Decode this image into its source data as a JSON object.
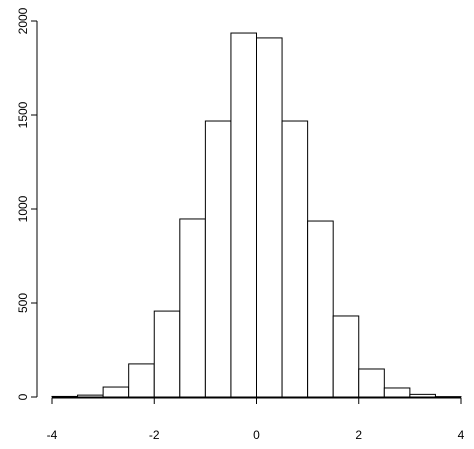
{
  "chart_data": {
    "type": "histogram",
    "bins": [
      -4,
      -3.5,
      -3,
      -2.5,
      -2,
      -1.5,
      -1,
      -0.5,
      0,
      0.5,
      1,
      1.5,
      2,
      2.5,
      3,
      3.5,
      4
    ],
    "counts": [
      3,
      10,
      53,
      176,
      457,
      947,
      1468,
      1936,
      1910,
      1468,
      936,
      431,
      149,
      48,
      14,
      2
    ],
    "color": "#ffffff",
    "xlim": [
      -4,
      4
    ],
    "xticks": [
      -4,
      -2,
      0,
      2,
      4
    ],
    "ylim": [
      0,
      2000
    ],
    "yticks": [
      0,
      500,
      1000,
      1500,
      2000
    ]
  }
}
